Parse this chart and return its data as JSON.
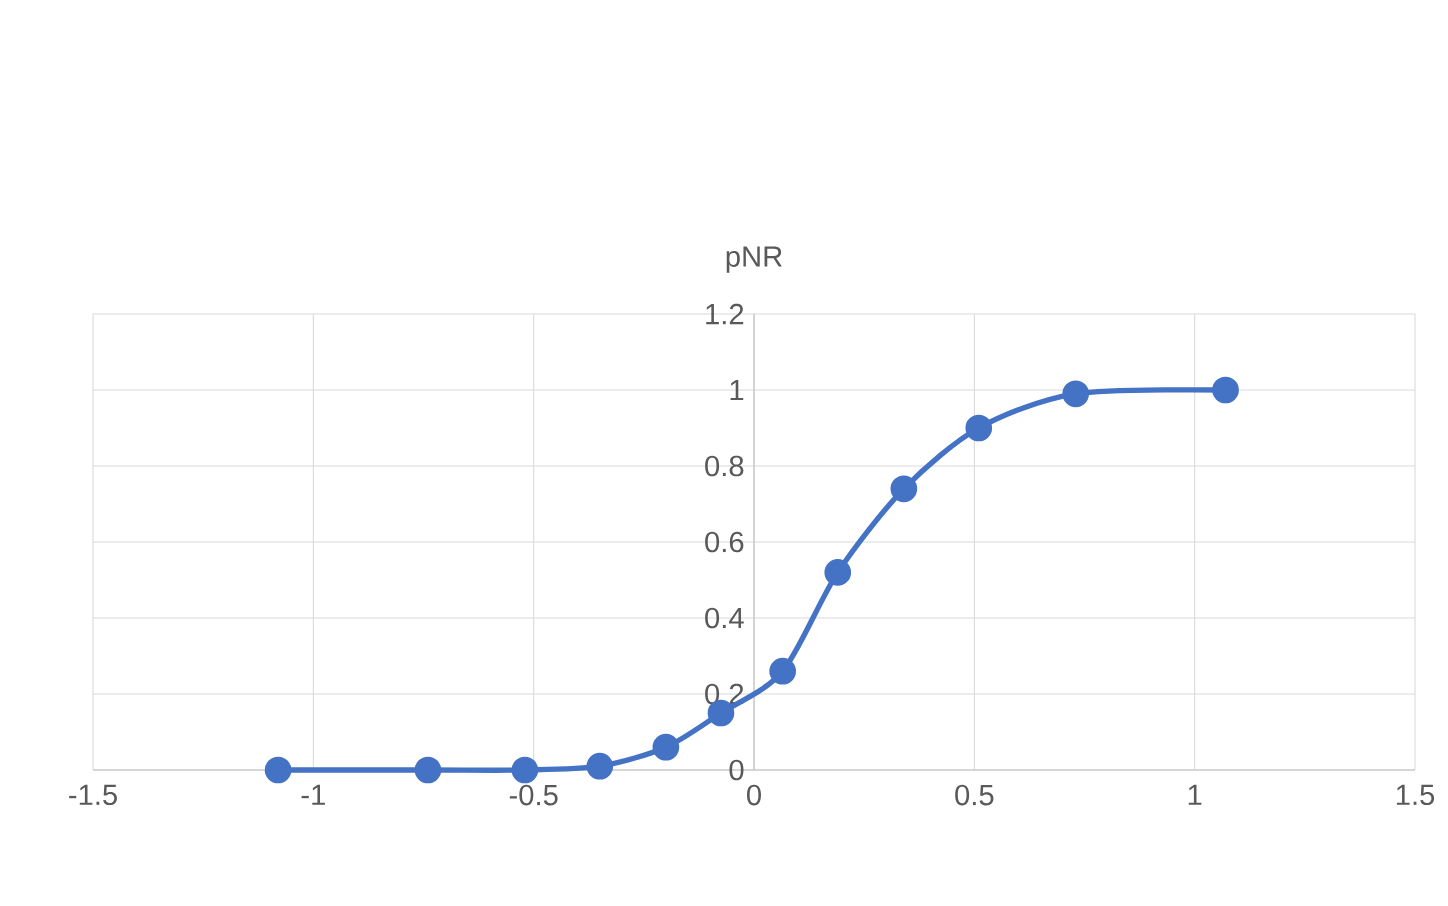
{
  "chart_data": {
    "type": "line",
    "title": "pNR",
    "x": [
      -1.08,
      -0.74,
      -0.52,
      -0.35,
      -0.2,
      -0.075,
      0.065,
      0.19,
      0.34,
      0.51,
      0.73,
      1.07
    ],
    "values": [
      0,
      0,
      0,
      0.01,
      0.06,
      0.15,
      0.26,
      0.52,
      0.74,
      0.9,
      0.99,
      1.0
    ],
    "color": "#4472c4",
    "marker": "circle",
    "line_style": "solid",
    "grid": true,
    "xlim": [
      -1.5,
      1.5
    ],
    "ylim": [
      0,
      1.2
    ],
    "xticks": [
      -1.5,
      -1,
      -0.5,
      0,
      0.5,
      1,
      1.5
    ],
    "yticks": [
      0,
      0.2,
      0.4,
      0.6,
      0.8,
      1,
      1.2
    ]
  }
}
